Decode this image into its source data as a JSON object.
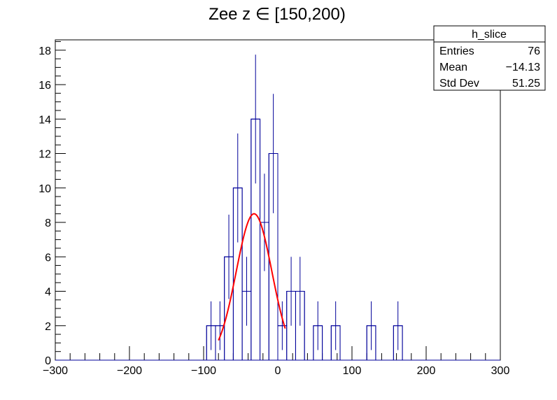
{
  "chart_data": {
    "type": "histogram",
    "title": "Zee z ∈ [150,200)",
    "xlabel": "",
    "ylabel": "",
    "xlim": [
      -300,
      300
    ],
    "ylim": [
      0,
      18.6
    ],
    "x_ticks": [
      -300,
      -200,
      -100,
      0,
      100,
      200,
      300
    ],
    "x_tick_labels": [
      "−300",
      "−200",
      "−100",
      "0",
      "100",
      "200",
      "300"
    ],
    "y_ticks": [
      0,
      2,
      4,
      6,
      8,
      10,
      12,
      14,
      16,
      18
    ],
    "y_tick_labels": [
      "0",
      "2",
      "4",
      "6",
      "8",
      "10",
      "12",
      "14",
      "16",
      "18"
    ],
    "bin_width": 12,
    "bins": [
      {
        "x0": -96,
        "x1": -84,
        "count": 2
      },
      {
        "x0": -84,
        "x1": -72,
        "count": 2
      },
      {
        "x0": -72,
        "x1": -60,
        "count": 6
      },
      {
        "x0": -60,
        "x1": -48,
        "count": 10
      },
      {
        "x0": -48,
        "x1": -36,
        "count": 4
      },
      {
        "x0": -36,
        "x1": -24,
        "count": 14
      },
      {
        "x0": -24,
        "x1": -12,
        "count": 8
      },
      {
        "x0": -12,
        "x1": 0,
        "count": 12
      },
      {
        "x0": 0,
        "x1": 12,
        "count": 2
      },
      {
        "x0": 12,
        "x1": 24,
        "count": 4
      },
      {
        "x0": 24,
        "x1": 36,
        "count": 4
      },
      {
        "x0": 48,
        "x1": 60,
        "count": 2
      },
      {
        "x0": 72,
        "x1": 84,
        "count": 2
      },
      {
        "x0": 120,
        "x1": 132,
        "count": 2
      },
      {
        "x0": 156,
        "x1": 168,
        "count": 2
      }
    ],
    "fit": {
      "type": "gaussian",
      "amplitude": 8.5,
      "mean": -32,
      "sigma": 24,
      "x_range": [
        -80,
        10
      ],
      "color": "#ff0000"
    },
    "histogram_color": "#000099",
    "stats_box": {
      "name": "h_slice",
      "rows": [
        {
          "label": "Entries",
          "value": "76"
        },
        {
          "label": "Mean",
          "value": "−14.13"
        },
        {
          "label": "Std Dev",
          "value": "51.25"
        }
      ]
    }
  }
}
